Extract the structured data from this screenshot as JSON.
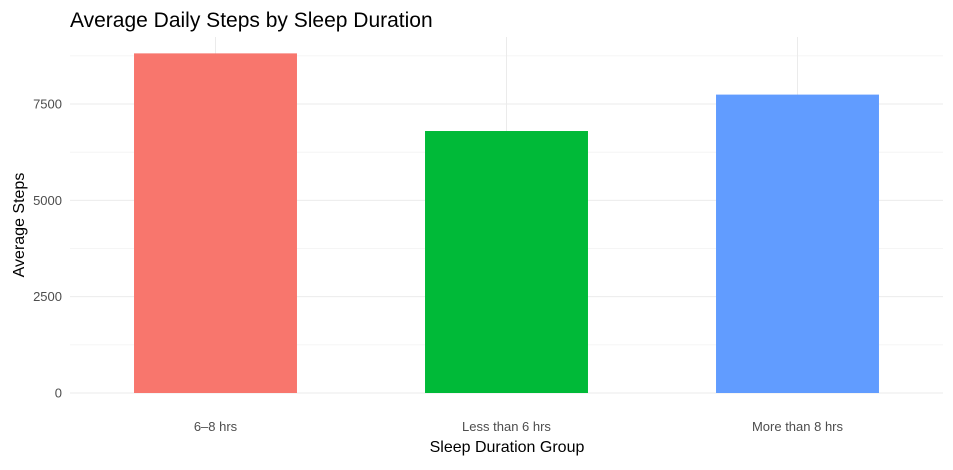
{
  "chart_data": {
    "type": "bar",
    "title": "Average Daily Steps by Sleep Duration",
    "xlabel": "Sleep Duration Group",
    "ylabel": "Average Steps",
    "categories": [
      "6–8 hrs",
      "Less than 6 hrs",
      "More than 8 hrs"
    ],
    "values": [
      8815,
      6800,
      7745
    ],
    "colors": [
      "#F8766D",
      "#00BA38",
      "#619CFF"
    ],
    "ylim": [
      0,
      9240
    ],
    "yticks": [
      0,
      2500,
      5000,
      7500
    ],
    "ytick_labels": [
      "0",
      "2500",
      "5000",
      "7500"
    ],
    "grid": true,
    "legend": "none"
  }
}
